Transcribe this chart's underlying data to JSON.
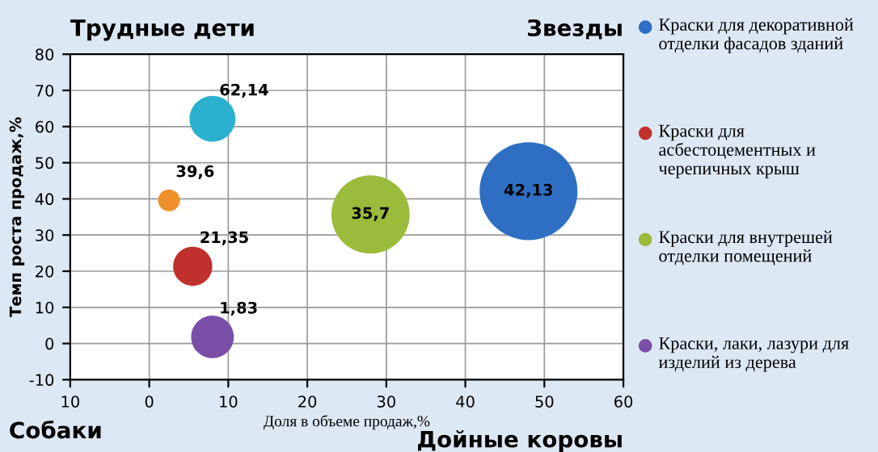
{
  "chart_data": {
    "type": "bubble",
    "xlabel": "Доля в объеме продаж,%",
    "ylabel": "Темп роста продаж,%",
    "annotations": [
      "Трудные дети",
      "Звезды",
      "Собаки",
      "Дойные коровы"
    ],
    "xlim": [
      -10,
      60
    ],
    "xticks": [
      {
        "value": -10,
        "label": "10"
      },
      0,
      10,
      20,
      30,
      40,
      50,
      60
    ],
    "ylim": [
      -10,
      80
    ],
    "yticks": [
      -10,
      0,
      10,
      20,
      30,
      40,
      50,
      60,
      70,
      80
    ],
    "grid": true,
    "legend": "right",
    "series": [
      {
        "name": "Краски для декоративной отделки фасадов зданий",
        "color": "#2e6fc4",
        "x": [
          48
        ],
        "values": [
          42.13
        ],
        "value_labels": [
          "42,13"
        ],
        "sizes": [
          1
        ]
      },
      {
        "name": "Краски для асбестоцементных и черепичных крыш",
        "color": "#c0302c",
        "x": [
          5.5
        ],
        "values": [
          21.35
        ],
        "value_labels": [
          "21,35"
        ],
        "sizes": [
          0.16
        ]
      },
      {
        "name": "Краски для внутрешей отделки помещений",
        "color": "#9bbb3a",
        "x": [
          28
        ],
        "values": [
          35.7
        ],
        "value_labels": [
          "35,7"
        ],
        "sizes": [
          0.64
        ]
      },
      {
        "name": "Краски, лаки, лазури для изделий из дерева",
        "color": "#7a4fa8",
        "x": [
          8
        ],
        "values": [
          1.83
        ],
        "value_labels": [
          "1,83"
        ],
        "sizes": [
          0.19
        ]
      },
      {
        "color": "#2bb0d0",
        "x": [
          8
        ],
        "values": [
          62.14
        ],
        "value_labels": [
          "62,14"
        ],
        "sizes": [
          0.22
        ]
      },
      {
        "color": "#f0902a",
        "x": [
          2.5
        ],
        "values": [
          39.6
        ],
        "value_labels": [
          "39,6"
        ],
        "sizes": [
          0.05
        ]
      }
    ]
  }
}
